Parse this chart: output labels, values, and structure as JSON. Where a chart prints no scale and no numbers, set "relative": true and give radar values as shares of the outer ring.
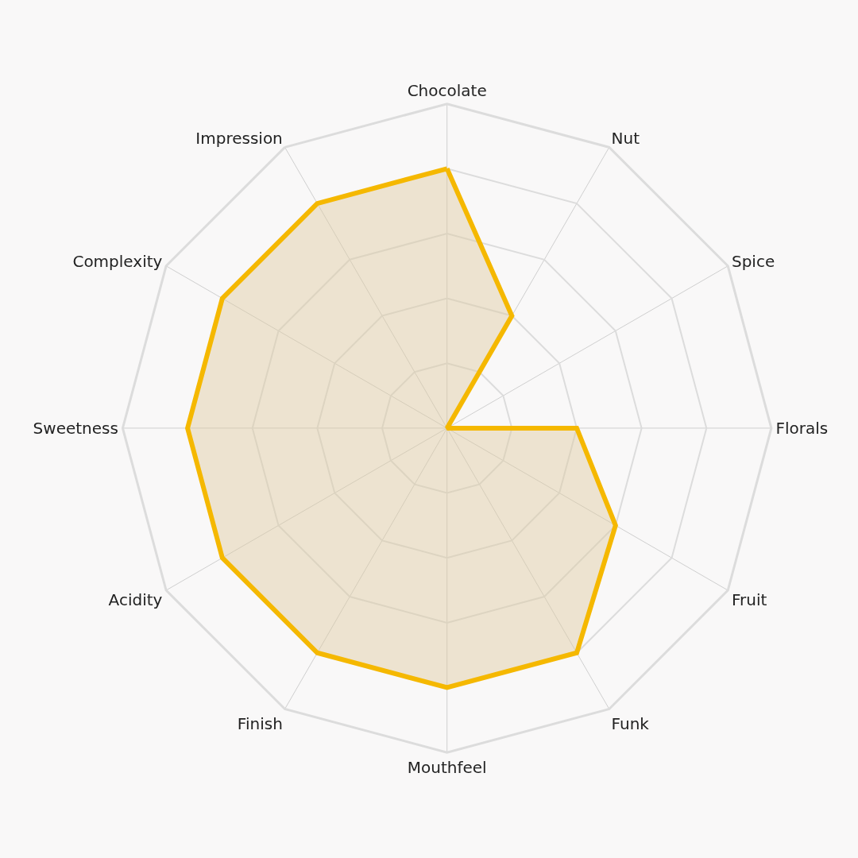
{
  "chart_data": {
    "type": "radar",
    "relative": true,
    "grid": true,
    "marker": "none",
    "line_style": "solid",
    "categories": [
      "Chocolate",
      "Nut",
      "Spice",
      "Florals",
      "Fruit",
      "Funk",
      "Mouthfeel",
      "Finish",
      "Acidity",
      "Sweetness",
      "Complexity",
      "Impression"
    ],
    "series": [
      {
        "color": "#f5b800",
        "values": [
          0.8,
          0.4,
          0,
          0.4,
          0.6,
          0.8,
          0.8,
          0.8,
          0.8,
          0.8,
          0.8,
          0.8
        ]
      }
    ]
  }
}
